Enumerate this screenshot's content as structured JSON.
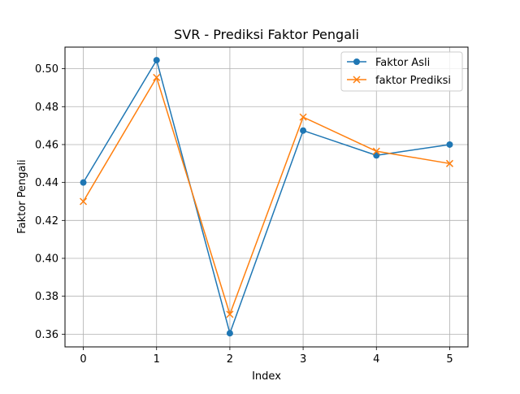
{
  "chart_data": {
    "type": "line",
    "title": "SVR - Prediksi Faktor Pengali",
    "xlabel": "Index",
    "ylabel": "Faktor Pengali",
    "x": [
      0,
      1,
      2,
      3,
      4,
      5
    ],
    "xticks": [
      "0",
      "1",
      "2",
      "3",
      "4",
      "5"
    ],
    "yticks": [
      "0.36",
      "0.38",
      "0.40",
      "0.42",
      "0.44",
      "0.46",
      "0.48",
      "0.50"
    ],
    "xlim": [
      -0.25,
      5.25
    ],
    "ylim": [
      0.3533,
      0.5114
    ],
    "grid": true,
    "legend_position": "top-right",
    "series": [
      {
        "name": "Faktor Asli",
        "color": "#1f77b4",
        "marker": "circle",
        "values": [
          0.44,
          0.5045,
          0.3605,
          0.4674,
          0.4543,
          0.46
        ]
      },
      {
        "name": "faktor Prediksi",
        "color": "#ff7f0e",
        "marker": "x",
        "values": [
          0.43,
          0.4954,
          0.3705,
          0.4745,
          0.4565,
          0.45
        ]
      }
    ]
  }
}
